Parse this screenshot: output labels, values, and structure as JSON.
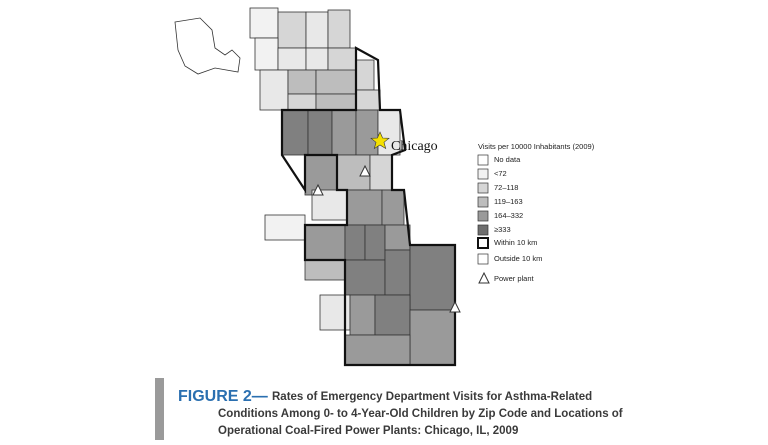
{
  "map": {
    "city_label": "Chicago"
  },
  "legend": {
    "title": "Visits per 10000 Inhabitants (2009)",
    "items": [
      "No data",
      "<72",
      "72–118",
      "119–163",
      "164–332",
      "≥333"
    ],
    "boundaries": [
      "Within 10 km",
      "Outside 10 km"
    ],
    "power_plant": "Power plant"
  },
  "caption": {
    "label": "FIGURE 2—",
    "lines": [
      "Rates of Emergency Department Visits for Asthma-Related",
      "Conditions Among 0- to 4-Year-Old Children by Zip Code and Locations of",
      "Operational Coal-Fired Power Plants: Chicago, IL, 2009"
    ]
  }
}
